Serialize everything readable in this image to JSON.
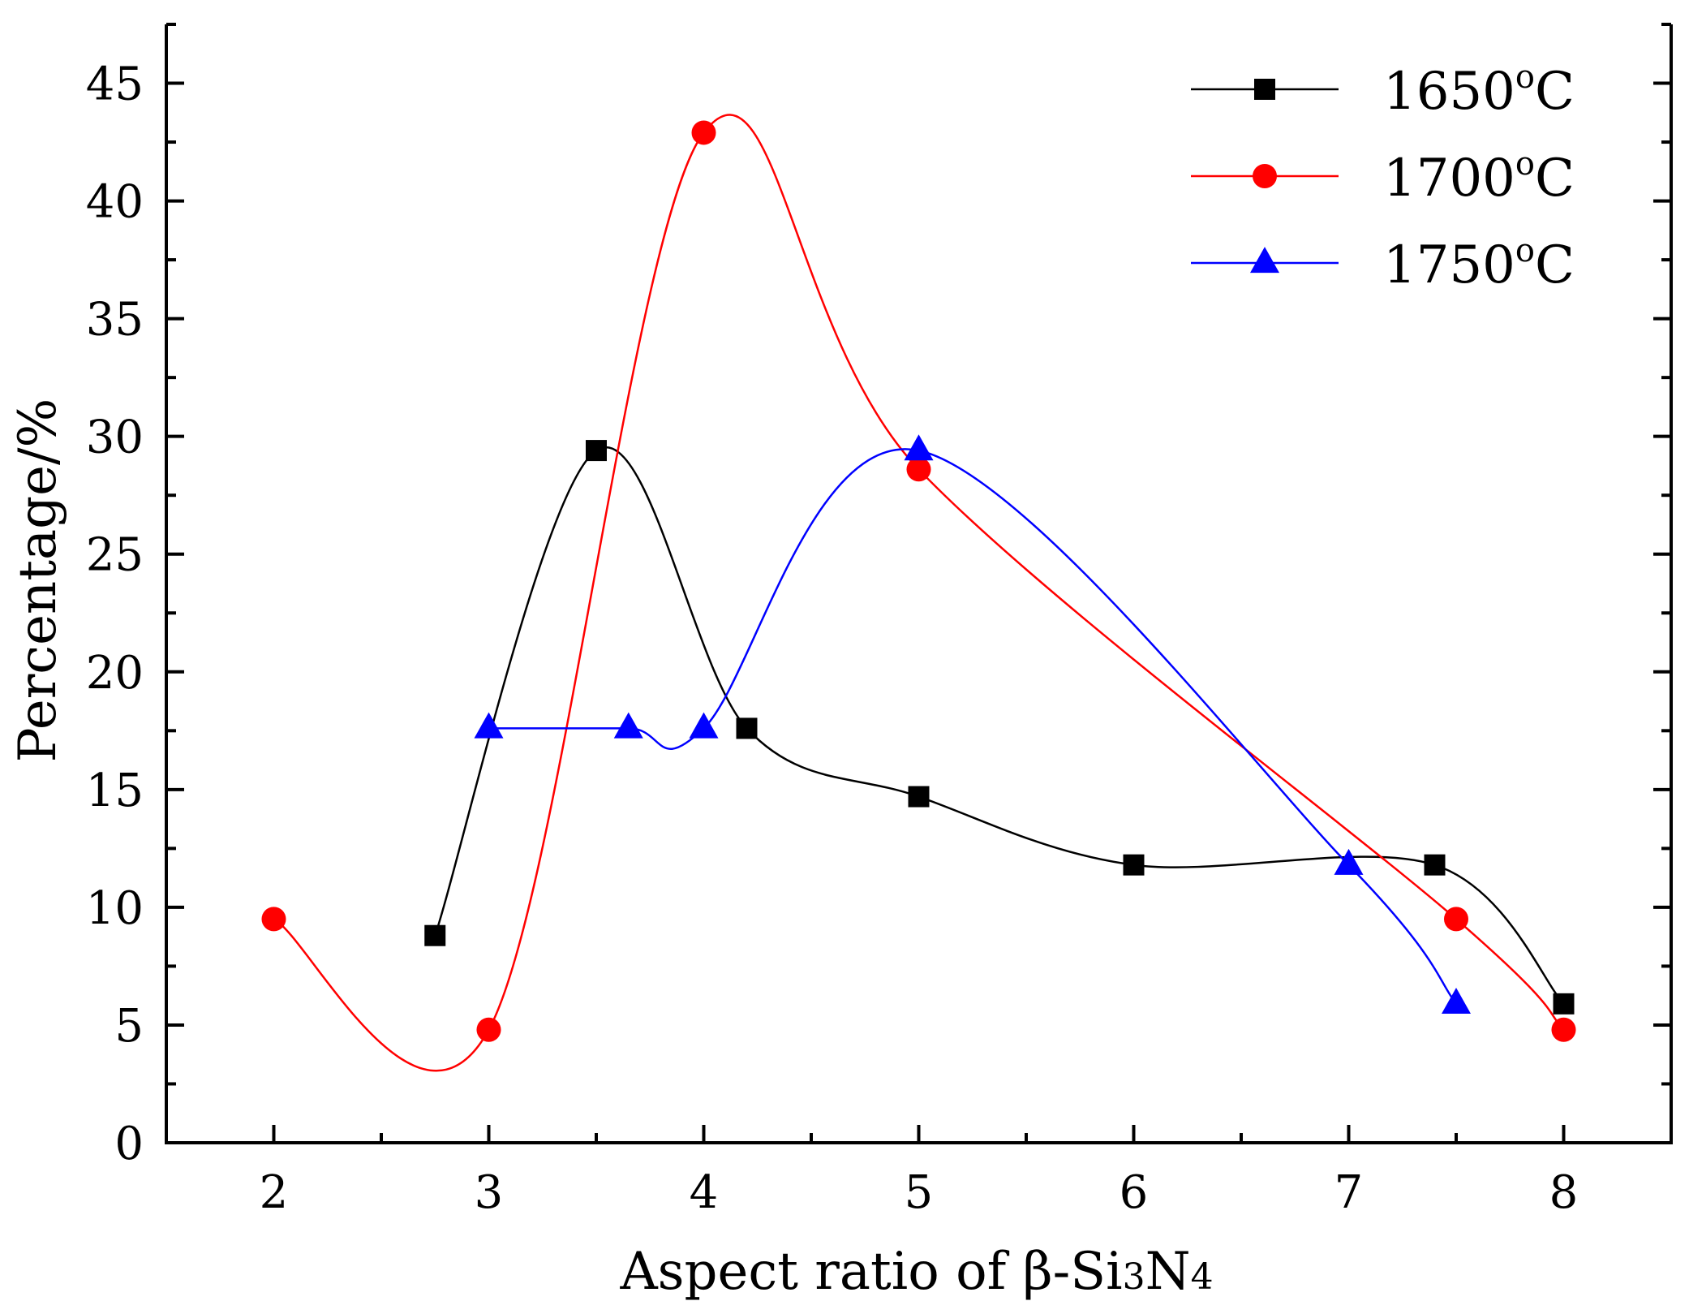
{
  "chart_data": {
    "type": "line",
    "title": "",
    "xlabel": "Aspect ratio of β-Si3N4",
    "xlabel_parts": {
      "base": "Aspect ratio of β-Si",
      "sub1": "3",
      "mid": "N",
      "sub2": "4"
    },
    "ylabel": "Percentage/%",
    "xlim": [
      1.5,
      8.5
    ],
    "ylim": [
      0,
      47.5
    ],
    "xticks": [
      2,
      3,
      4,
      5,
      6,
      7,
      8
    ],
    "xtick_labels": [
      "2",
      "3",
      "4",
      "5",
      "6",
      "7",
      "8"
    ],
    "yticks": [
      0,
      5,
      10,
      15,
      20,
      25,
      30,
      35,
      40,
      45
    ],
    "ytick_labels": [
      "0",
      "5",
      "10",
      "15",
      "20",
      "25",
      "30",
      "35",
      "40",
      "45"
    ],
    "legend_position": "top-right",
    "series": [
      {
        "name": "1650°C",
        "label_num": "1650",
        "label_sup": "o",
        "label_unit": "C",
        "color": "#000000",
        "marker": "square",
        "x": [
          2.75,
          3.5,
          4.2,
          5.0,
          6.0,
          7.4,
          8.0
        ],
        "y": [
          8.8,
          29.4,
          17.6,
          14.7,
          11.8,
          11.8,
          5.9
        ]
      },
      {
        "name": "1700°C",
        "label_num": "1700",
        "label_sup": "o",
        "label_unit": "C",
        "color": "#ff0000",
        "marker": "circle",
        "x": [
          2.0,
          3.0,
          4.0,
          5.0,
          7.5,
          8.0
        ],
        "y": [
          9.5,
          4.8,
          42.9,
          28.6,
          9.5,
          4.8
        ]
      },
      {
        "name": "1750°C",
        "label_num": "1750",
        "label_sup": "o",
        "label_unit": "C",
        "color": "#0000ff",
        "marker": "triangle",
        "x": [
          3.0,
          3.65,
          4.0,
          5.0,
          7.0,
          7.5
        ],
        "y": [
          17.6,
          17.6,
          17.6,
          29.4,
          11.8,
          5.9
        ]
      }
    ]
  }
}
